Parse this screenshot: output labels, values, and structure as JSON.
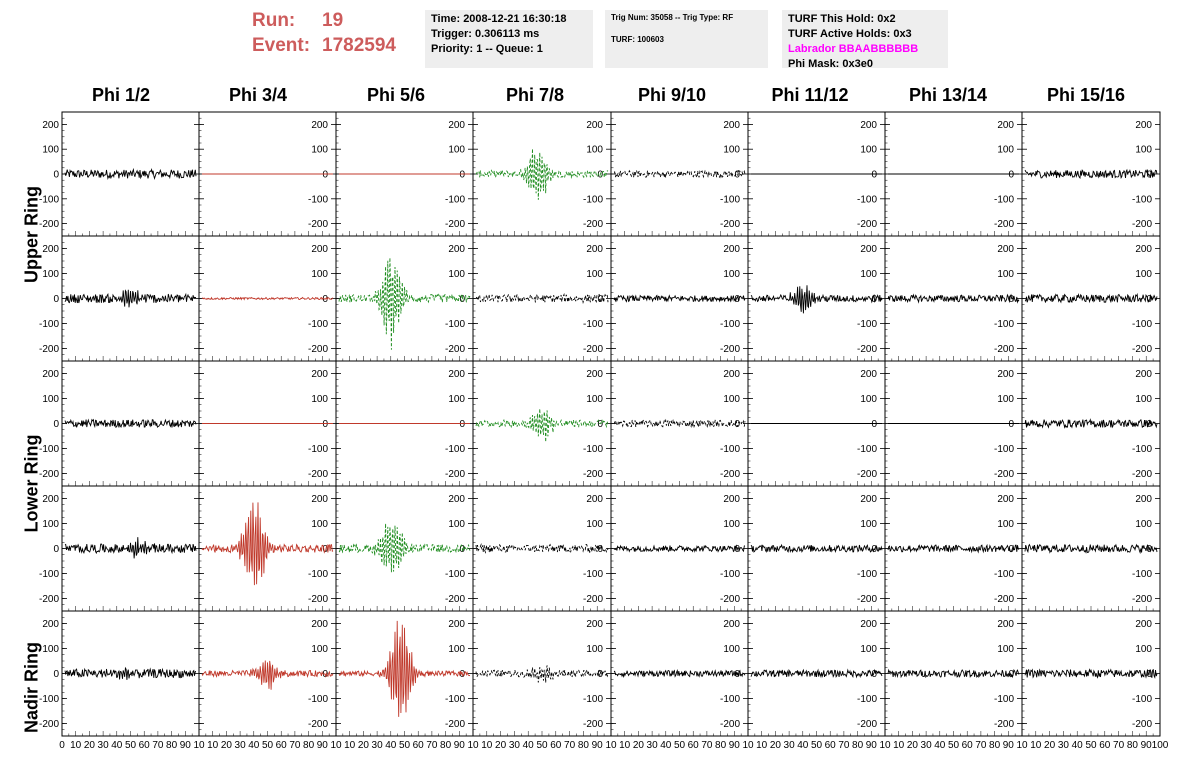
{
  "run": {
    "run_label": "Run:",
    "run_value": "19",
    "event_label": "Event:",
    "event_value": "1782594"
  },
  "time_box": {
    "time": "Time: 2008-12-21 16:30:18",
    "trigger": "Trigger: 0.306113 ms",
    "priority": "Priority: 1 -- Queue: 1"
  },
  "trig_box": {
    "trig": "Trig Num: 35058 -- Trig Type: RF",
    "turf": "TURF: 100603"
  },
  "turf_box": {
    "this_hold": "TURF This Hold: 0x2",
    "active_holds": "TURF Active Holds: 0x3",
    "labrador": "Labrador BBAABBBBBB",
    "phi_mask": "Phi Mask: 0x3e0"
  },
  "phi_labels": [
    "Phi 1/2",
    "Phi 3/4",
    "Phi 5/6",
    "Phi 7/8",
    "Phi 9/10",
    "Phi 11/12",
    "Phi 13/14",
    "Phi 15/16"
  ],
  "ring_labels": {
    "upper": "Upper Ring",
    "lower": "Lower Ring",
    "nadir": "Nadir Ring"
  },
  "y_ticks": [
    "200",
    "100",
    "0",
    "-100",
    "-200"
  ],
  "x_ticks_first": [
    "0",
    "10",
    "20",
    "30",
    "40",
    "50",
    "60",
    "70",
    "80",
    "90",
    "10"
  ],
  "x_ticks_middle": [
    "10",
    "20",
    "30",
    "40",
    "50",
    "60",
    "70",
    "80",
    "90",
    "10"
  ],
  "x_ticks_last": [
    "10",
    "20",
    "30",
    "40",
    "50",
    "60",
    "70",
    "80",
    "90",
    "100"
  ],
  "colors": {
    "normal": "#000000",
    "red": "#c0392b",
    "green": "#1e8c1e",
    "label_red": "#cd5c5c",
    "magenta": "#ff00ff"
  },
  "y_range": [
    -250,
    250
  ],
  "x_range": [
    0,
    100
  ],
  "traces": [
    [
      {
        "color": "black",
        "amp": 18,
        "burst": 0,
        "pos": 0,
        "dash": false
      },
      {
        "color": "red",
        "amp": 0,
        "burst": 0,
        "pos": 0,
        "dash": false
      },
      {
        "color": "red",
        "amp": 0,
        "burst": 0,
        "pos": 0,
        "dash": false
      },
      {
        "color": "green",
        "amp": 14,
        "burst": 130,
        "pos": 47,
        "dash": true
      },
      {
        "color": "black",
        "amp": 14,
        "burst": 0,
        "pos": 0,
        "dash": true
      },
      {
        "color": "black",
        "amp": 0,
        "burst": 0,
        "pos": 0,
        "dash": false
      },
      {
        "color": "black",
        "amp": 0,
        "burst": 0,
        "pos": 0,
        "dash": false
      },
      {
        "color": "black",
        "amp": 16,
        "burst": 0,
        "pos": 0,
        "dash": false
      }
    ],
    [
      {
        "color": "black",
        "amp": 18,
        "burst": 40,
        "pos": 50,
        "dash": false
      },
      {
        "color": "red",
        "amp": 4,
        "burst": 0,
        "pos": 0,
        "dash": false
      },
      {
        "color": "green",
        "amp": 16,
        "burst": 210,
        "pos": 40,
        "dash": true
      },
      {
        "color": "black",
        "amp": 16,
        "burst": 0,
        "pos": 0,
        "dash": true
      },
      {
        "color": "black",
        "amp": 12,
        "burst": 0,
        "pos": 0,
        "dash": false
      },
      {
        "color": "black",
        "amp": 14,
        "burst": 60,
        "pos": 40,
        "dash": false
      },
      {
        "color": "black",
        "amp": 14,
        "burst": 0,
        "pos": 0,
        "dash": false
      },
      {
        "color": "black",
        "amp": 16,
        "burst": 0,
        "pos": 0,
        "dash": false
      }
    ],
    [
      {
        "color": "black",
        "amp": 16,
        "burst": 0,
        "pos": 0,
        "dash": false
      },
      {
        "color": "red",
        "amp": 0,
        "burst": 0,
        "pos": 0,
        "dash": false
      },
      {
        "color": "red",
        "amp": 0,
        "burst": 0,
        "pos": 0,
        "dash": false
      },
      {
        "color": "green",
        "amp": 14,
        "burst": 75,
        "pos": 50,
        "dash": true
      },
      {
        "color": "black",
        "amp": 14,
        "burst": 0,
        "pos": 0,
        "dash": true
      },
      {
        "color": "black",
        "amp": 0,
        "burst": 0,
        "pos": 0,
        "dash": false
      },
      {
        "color": "black",
        "amp": 0,
        "burst": 0,
        "pos": 0,
        "dash": false
      },
      {
        "color": "black",
        "amp": 16,
        "burst": 0,
        "pos": 0,
        "dash": false
      }
    ],
    [
      {
        "color": "black",
        "amp": 18,
        "burst": 30,
        "pos": 55,
        "dash": false
      },
      {
        "color": "red",
        "amp": 16,
        "burst": 220,
        "pos": 40,
        "dash": false
      },
      {
        "color": "green",
        "amp": 16,
        "burst": 150,
        "pos": 40,
        "dash": true
      },
      {
        "color": "black",
        "amp": 16,
        "burst": 0,
        "pos": 0,
        "dash": true
      },
      {
        "color": "black",
        "amp": 12,
        "burst": 0,
        "pos": 0,
        "dash": false
      },
      {
        "color": "black",
        "amp": 14,
        "burst": 0,
        "pos": 0,
        "dash": false
      },
      {
        "color": "black",
        "amp": 14,
        "burst": 0,
        "pos": 0,
        "dash": false
      },
      {
        "color": "black",
        "amp": 16,
        "burst": 0,
        "pos": 0,
        "dash": false
      }
    ],
    [
      {
        "color": "black",
        "amp": 18,
        "burst": 20,
        "pos": 45,
        "dash": false
      },
      {
        "color": "red",
        "amp": 12,
        "burst": 70,
        "pos": 50,
        "dash": false
      },
      {
        "color": "red",
        "amp": 10,
        "burst": 250,
        "pos": 47,
        "dash": false
      },
      {
        "color": "black",
        "amp": 14,
        "burst": 30,
        "pos": 50,
        "dash": true
      },
      {
        "color": "black",
        "amp": 12,
        "burst": 0,
        "pos": 0,
        "dash": false
      },
      {
        "color": "black",
        "amp": 14,
        "burst": 0,
        "pos": 0,
        "dash": false
      },
      {
        "color": "black",
        "amp": 14,
        "burst": 0,
        "pos": 0,
        "dash": false
      },
      {
        "color": "black",
        "amp": 16,
        "burst": 0,
        "pos": 0,
        "dash": false
      }
    ]
  ]
}
